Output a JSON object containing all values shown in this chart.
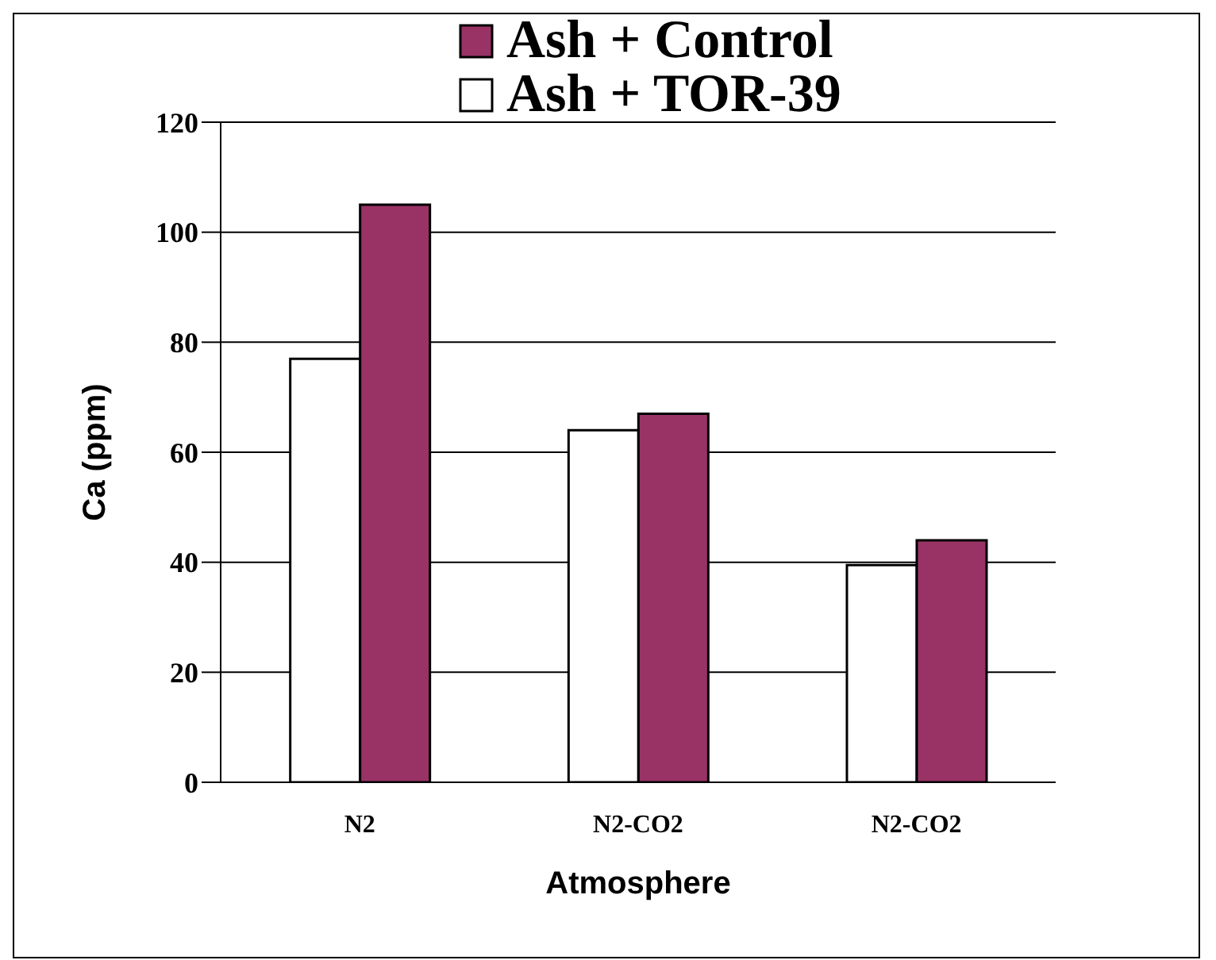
{
  "chart_data": {
    "type": "bar",
    "xlabel": "Atmosphere",
    "ylabel": "Ca (ppm)",
    "categories": [
      "N2",
      "N2-CO2",
      "N2-CO2"
    ],
    "series": [
      {
        "name": "Ash + TOR-39",
        "color": "#ffffff",
        "values": [
          77,
          64,
          39.5
        ]
      },
      {
        "name": "Ash + Control",
        "color": "#993366",
        "values": [
          105,
          67,
          44
        ]
      }
    ],
    "ylim": [
      0,
      120
    ],
    "yticks": [
      0,
      20,
      40,
      60,
      80,
      100,
      120
    ],
    "grid": "y",
    "legend": "top"
  }
}
